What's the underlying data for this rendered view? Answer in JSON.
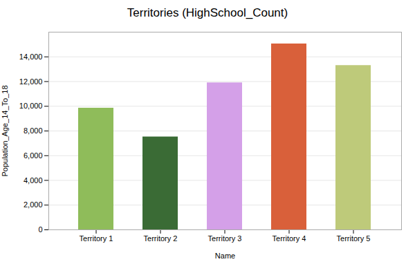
{
  "chart_data": {
    "type": "bar",
    "title": "Territories (HighSchool_Count)",
    "xlabel": "Name",
    "ylabel": "Population_Age_14_To_18",
    "categories": [
      "Territory 1",
      "Territory 2",
      "Territory 3",
      "Territory 4",
      "Territory 5"
    ],
    "values": [
      9850,
      7520,
      11900,
      15050,
      13300
    ],
    "colors": [
      "#8fbc5a",
      "#3a6b35",
      "#d4a0e8",
      "#d9603a",
      "#beca7a"
    ],
    "ylim": [
      0,
      16000
    ],
    "yticks": [
      0,
      {
        "value": 2000,
        "label": "2,000"
      },
      {
        "value": 4000,
        "label": "4,000"
      },
      {
        "value": 6000,
        "label": "6,000"
      },
      {
        "value": 8000,
        "label": "8,000"
      },
      {
        "value": 10000,
        "label": "10,000"
      },
      {
        "value": 12000,
        "label": "12,000"
      },
      {
        "value": 14000,
        "label": "14,000"
      }
    ],
    "grid": true
  }
}
